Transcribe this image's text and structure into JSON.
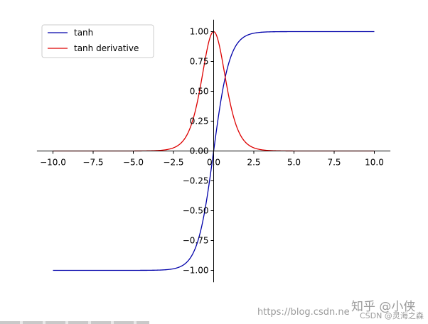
{
  "chart_data": {
    "type": "line",
    "title": "",
    "xlabel": "",
    "ylabel": "",
    "xlim": [
      -11,
      11
    ],
    "ylim": [
      -1.1,
      1.1
    ],
    "x_ticks": [
      -10,
      -7.5,
      -5,
      -2.5,
      0,
      2.5,
      5,
      7.5,
      10
    ],
    "x_tick_labels": [
      "−10.0",
      "−7.5",
      "−5.0",
      "−2.5",
      "0.0",
      "2.5",
      "5.0",
      "7.5",
      "10.0"
    ],
    "y_ticks": [
      -1,
      -0.75,
      -0.5,
      -0.25,
      0,
      0.25,
      0.5,
      0.75,
      1
    ],
    "y_tick_labels": [
      "−1.00",
      "−0.75",
      "−0.50",
      "−0.25",
      "0.00",
      "0.25",
      "0.50",
      "0.75",
      "1.00"
    ],
    "grid": false,
    "spines": "centered",
    "legend": "top-left",
    "series": [
      {
        "name": "tanh",
        "color": "#0000aa",
        "x": [
          -10,
          -8,
          -6,
          -4,
          -3,
          -2.5,
          -2,
          -1.5,
          -1,
          -0.5,
          0,
          0.5,
          1,
          1.5,
          2,
          2.5,
          3,
          4,
          6,
          8,
          10
        ],
        "y": [
          -1,
          -1,
          -1,
          -0.999,
          -0.995,
          -0.987,
          -0.964,
          -0.905,
          -0.762,
          -0.462,
          0,
          0.462,
          0.762,
          0.905,
          0.964,
          0.987,
          0.995,
          0.999,
          1,
          1,
          1
        ]
      },
      {
        "name": "tanh derivative",
        "color": "#dd0000",
        "x": [
          -10,
          -8,
          -6,
          -4,
          -3,
          -2.5,
          -2,
          -1.5,
          -1,
          -0.5,
          0,
          0.5,
          1,
          1.5,
          2,
          2.5,
          3,
          4,
          6,
          8,
          10
        ],
        "y": [
          0,
          0,
          0,
          0.001,
          0.01,
          0.027,
          0.071,
          0.181,
          0.42,
          0.786,
          1,
          0.786,
          0.42,
          0.181,
          0.071,
          0.027,
          0.01,
          0.001,
          0,
          0,
          0
        ]
      }
    ]
  },
  "watermark": {
    "zhihu": "知乎 @小侠",
    "url": "https://blog.csdn.ne",
    "csdn": "CSDN @灵海之森"
  }
}
